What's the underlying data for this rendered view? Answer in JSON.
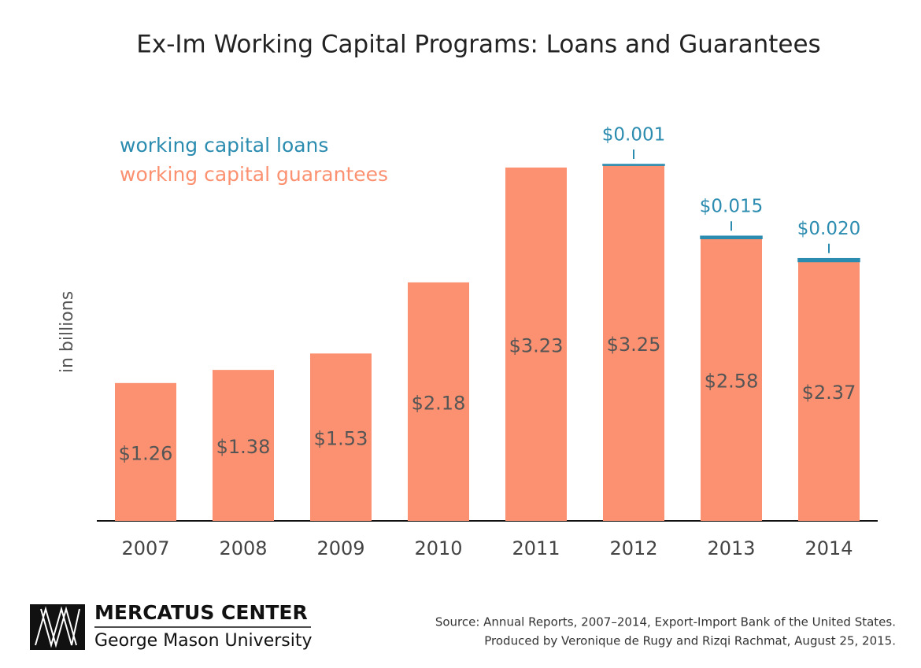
{
  "chart_data": {
    "type": "stacked_bar",
    "title": "Ex-Im Working Capital Programs: Loans and Guarantees",
    "y_label": "in billions",
    "categories": [
      "2007",
      "2008",
      "2009",
      "2010",
      "2011",
      "2012",
      "2013",
      "2014"
    ],
    "series": [
      {
        "name": "working capital guarantees",
        "color": "#fb9170",
        "values": [
          1.26,
          1.38,
          1.53,
          2.18,
          3.23,
          3.25,
          2.58,
          2.37
        ],
        "value_labels": [
          "$1.26",
          "$1.38",
          "$1.53",
          "$2.18",
          "$3.23",
          "$3.25",
          "$2.58",
          "$2.37"
        ]
      },
      {
        "name": "working capital loans",
        "color": "#2b8cb0",
        "values": [
          null,
          null,
          null,
          null,
          null,
          0.001,
          0.015,
          0.02
        ],
        "value_labels": [
          null,
          null,
          null,
          null,
          null,
          "$0.001",
          "$0.015",
          "$0.020"
        ]
      }
    ]
  },
  "footer": {
    "logo_title": "MERCATUS CENTER",
    "logo_subtitle": "George Mason University",
    "source": "Source: Annual Reports, 2007–2014, Export-Import Bank of the United States.",
    "credit": "Produced by Veronique de Rugy and Rizqi Rachmat, August 25, 2015."
  }
}
